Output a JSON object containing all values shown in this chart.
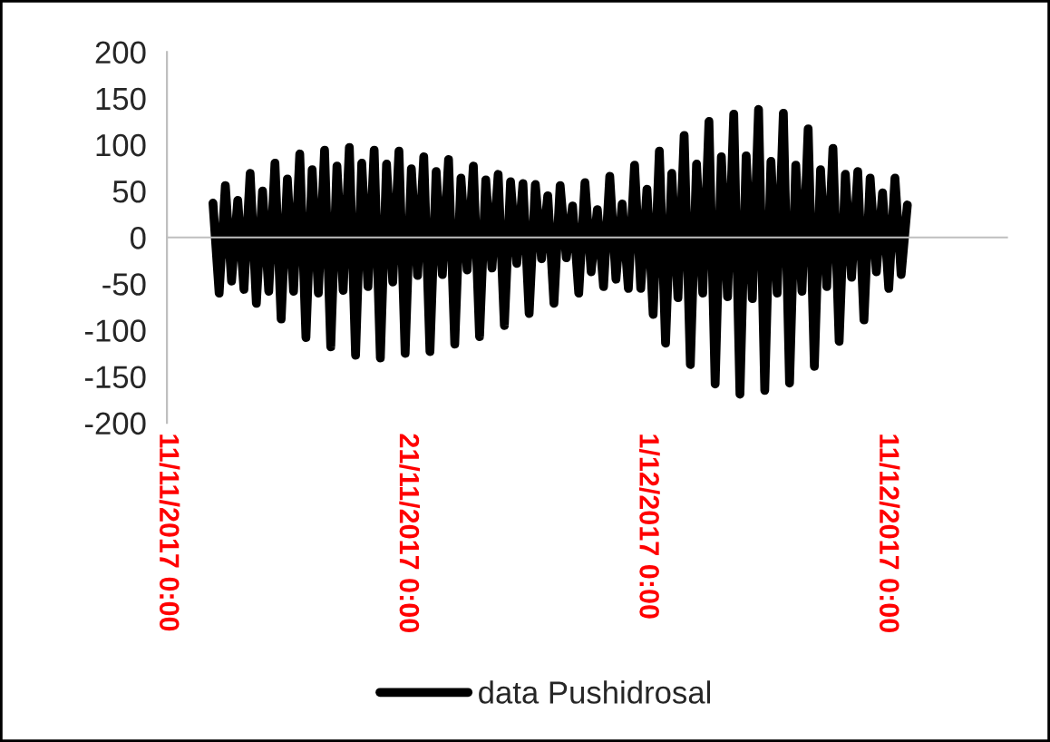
{
  "chart_data": {
    "type": "line",
    "x": [
      "2017-11-12T22:00",
      "2017-11-13T04:12",
      "2017-11-13T10:24",
      "2017-11-13T16:36",
      "2017-11-13T22:48",
      "2017-11-14T05:00",
      "2017-11-14T11:12",
      "2017-11-14T17:24",
      "2017-11-14T23:36",
      "2017-11-15T05:48",
      "2017-11-15T12:00",
      "2017-11-15T18:12",
      "2017-11-16T00:24",
      "2017-11-16T06:36",
      "2017-11-16T12:48",
      "2017-11-16T19:00",
      "2017-11-17T01:12",
      "2017-11-17T07:24",
      "2017-11-17T13:36",
      "2017-11-17T19:48",
      "2017-11-18T02:00",
      "2017-11-18T08:12",
      "2017-11-18T14:24",
      "2017-11-18T20:36",
      "2017-11-19T02:48",
      "2017-11-19T09:00",
      "2017-11-19T15:12",
      "2017-11-19T21:24",
      "2017-11-20T03:36",
      "2017-11-20T09:48",
      "2017-11-20T16:00",
      "2017-11-20T22:12",
      "2017-11-21T04:24",
      "2017-11-21T10:36",
      "2017-11-21T16:48",
      "2017-11-21T23:00",
      "2017-11-22T05:12",
      "2017-11-22T11:24",
      "2017-11-22T17:36",
      "2017-11-22T23:48",
      "2017-11-23T06:00",
      "2017-11-23T12:12",
      "2017-11-23T18:24",
      "2017-11-24T00:36",
      "2017-11-24T06:48",
      "2017-11-24T13:00",
      "2017-11-24T19:12",
      "2017-11-25T01:24",
      "2017-11-25T07:36",
      "2017-11-25T13:48",
      "2017-11-25T20:00",
      "2017-11-26T02:12",
      "2017-11-26T08:24",
      "2017-11-26T14:36",
      "2017-11-26T20:48",
      "2017-11-27T03:00",
      "2017-11-27T09:12",
      "2017-11-27T15:24",
      "2017-11-27T21:36",
      "2017-11-28T03:48",
      "2017-11-28T10:00",
      "2017-11-28T16:12",
      "2017-11-28T22:24",
      "2017-11-29T04:36",
      "2017-11-29T10:48",
      "2017-11-29T17:00",
      "2017-11-29T23:12",
      "2017-11-30T05:24",
      "2017-11-30T11:36",
      "2017-11-30T17:48",
      "2017-12-01T00:00",
      "2017-12-01T06:12",
      "2017-12-01T12:24",
      "2017-12-01T18:36",
      "2017-12-02T00:48",
      "2017-12-02T07:00",
      "2017-12-02T13:12",
      "2017-12-02T19:24",
      "2017-12-03T01:36",
      "2017-12-03T07:48",
      "2017-12-03T14:00",
      "2017-12-03T20:12",
      "2017-12-04T02:24",
      "2017-12-04T08:36",
      "2017-12-04T14:48",
      "2017-12-04T21:00",
      "2017-12-05T03:12",
      "2017-12-05T09:24",
      "2017-12-05T15:36",
      "2017-12-05T21:48",
      "2017-12-06T04:00",
      "2017-12-06T10:12",
      "2017-12-06T16:24",
      "2017-12-06T22:36",
      "2017-12-07T04:48",
      "2017-12-07T11:00",
      "2017-12-07T17:12",
      "2017-12-07T23:24",
      "2017-12-08T05:36",
      "2017-12-08T11:48",
      "2017-12-08T18:00",
      "2017-12-09T00:12",
      "2017-12-09T06:24",
      "2017-12-09T12:36",
      "2017-12-09T18:48",
      "2017-12-10T01:00",
      "2017-12-10T07:12",
      "2017-12-10T13:24",
      "2017-12-10T19:36",
      "2017-12-11T01:48",
      "2017-12-11T08:00",
      "2017-12-11T14:12",
      "2017-12-11T20:24"
    ],
    "series": [
      {
        "name": "data Pushidrosal",
        "color": "#000000",
        "values": [
          37,
          -60,
          56,
          -47,
          40,
          -56,
          69,
          -71,
          50,
          -58,
          80,
          -88,
          63,
          -58,
          90,
          -108,
          73,
          -60,
          94,
          -118,
          77,
          -57,
          97,
          -127,
          80,
          -53,
          94,
          -130,
          79,
          -48,
          93,
          -125,
          74,
          -41,
          87,
          -123,
          71,
          -40,
          84,
          -115,
          64,
          -35,
          77,
          -107,
          62,
          -33,
          68,
          -95,
          60,
          -28,
          58,
          -82,
          57,
          -23,
          45,
          -71,
          56,
          -22,
          34,
          -60,
          59,
          -37,
          30,
          -53,
          66,
          -45,
          36,
          -55,
          78,
          -55,
          52,
          -83,
          93,
          -114,
          69,
          -65,
          110,
          -137,
          79,
          -60,
          125,
          -158,
          87,
          -64,
          133,
          -169,
          88,
          -66,
          138,
          -165,
          82,
          -60,
          134,
          -157,
          78,
          -58,
          117,
          -139,
          73,
          -53,
          96,
          -112,
          68,
          -43,
          71,
          -89,
          64,
          -37,
          48,
          -55,
          64,
          -40,
          35
        ]
      }
    ],
    "xlim": [
      "2017-11-11",
      "2017-12-16"
    ],
    "xticks": [
      {
        "value": "2017-11-11",
        "label": "11/11/2017 0:00"
      },
      {
        "value": "2017-11-21",
        "label": "21/11/2017 0:00"
      },
      {
        "value": "2017-12-01",
        "label": "1/12/2017 0:00"
      },
      {
        "value": "2017-12-11",
        "label": "11/12/2017 0:00"
      }
    ],
    "ylim": [
      -200,
      200
    ],
    "yticks": [
      -200,
      -150,
      -100,
      -50,
      0,
      50,
      100,
      150,
      200
    ],
    "legend": "bottom"
  }
}
